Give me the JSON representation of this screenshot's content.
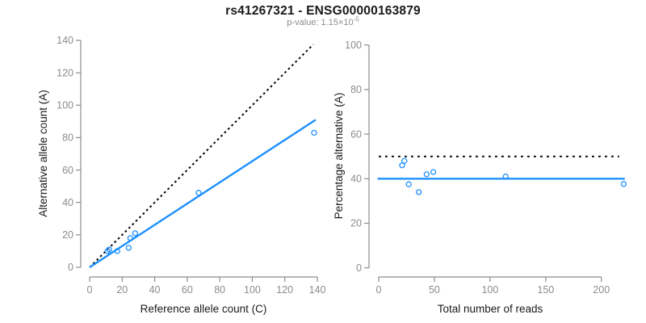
{
  "header": {
    "title": "rs41267321 - ENSG00000163879",
    "p_label": "p-value: 1.15×10",
    "p_exponent": "-5"
  },
  "colors": {
    "accent_blue": "#1E90FF",
    "axis_gray": "#8c8c8c",
    "text_black": "#1a1a1a",
    "dotted_black": "#000000"
  },
  "chart_data": [
    {
      "type": "scatter",
      "name": "allele-counts-plot",
      "xlabel": "Reference allele count (C)",
      "ylabel": "Alternative allele count (A)",
      "xlim": [
        0,
        140
      ],
      "ylim": [
        0,
        140
      ],
      "xticks": [
        0,
        20,
        40,
        60,
        80,
        100,
        120,
        140
      ],
      "yticks": [
        0,
        20,
        40,
        60,
        80,
        100,
        120,
        140
      ],
      "grid": false,
      "legend": false,
      "points": [
        {
          "x": 11,
          "y": 10
        },
        {
          "x": 12,
          "y": 11
        },
        {
          "x": 17,
          "y": 10
        },
        {
          "x": 24,
          "y": 12
        },
        {
          "x": 25,
          "y": 18
        },
        {
          "x": 28,
          "y": 21
        },
        {
          "x": 67,
          "y": 46
        },
        {
          "x": 138,
          "y": 83
        }
      ],
      "lines": [
        {
          "name": "identity-line",
          "style": "dotted-dense",
          "color": "#000000",
          "x1": 0,
          "y1": 0,
          "x2": 137.5,
          "y2": 137.5
        },
        {
          "name": "fit-line",
          "style": "solid",
          "color": "#1E90FF",
          "x1": 0,
          "y1": 0,
          "x2": 139,
          "y2": 91
        }
      ]
    },
    {
      "type": "scatter",
      "name": "percentage-plot",
      "xlabel": "Total number of reads",
      "ylabel": "Percentage alternative (A)",
      "xlim": [
        0,
        232
      ],
      "ylim": [
        0,
        100
      ],
      "xticks": [
        0,
        50,
        100,
        150,
        200
      ],
      "yticks": [
        0,
        20,
        40,
        60,
        80,
        100
      ],
      "grid": false,
      "legend": false,
      "points": [
        {
          "x": 21,
          "y": 46
        },
        {
          "x": 23,
          "y": 48
        },
        {
          "x": 27,
          "y": 37.5
        },
        {
          "x": 36,
          "y": 34
        },
        {
          "x": 43,
          "y": 42
        },
        {
          "x": 49,
          "y": 43
        },
        {
          "x": 114,
          "y": 41
        },
        {
          "x": 220,
          "y": 37.6
        }
      ],
      "lines": [
        {
          "name": "fifty-percent-line",
          "style": "dotted",
          "color": "#000000",
          "x1": 0,
          "y1": 50,
          "x2": 216,
          "y2": 50
        },
        {
          "name": "mean-percentage-line",
          "style": "solid",
          "color": "#1E90FF",
          "x1": -1,
          "y1": 40,
          "x2": 221,
          "y2": 40
        }
      ]
    }
  ]
}
